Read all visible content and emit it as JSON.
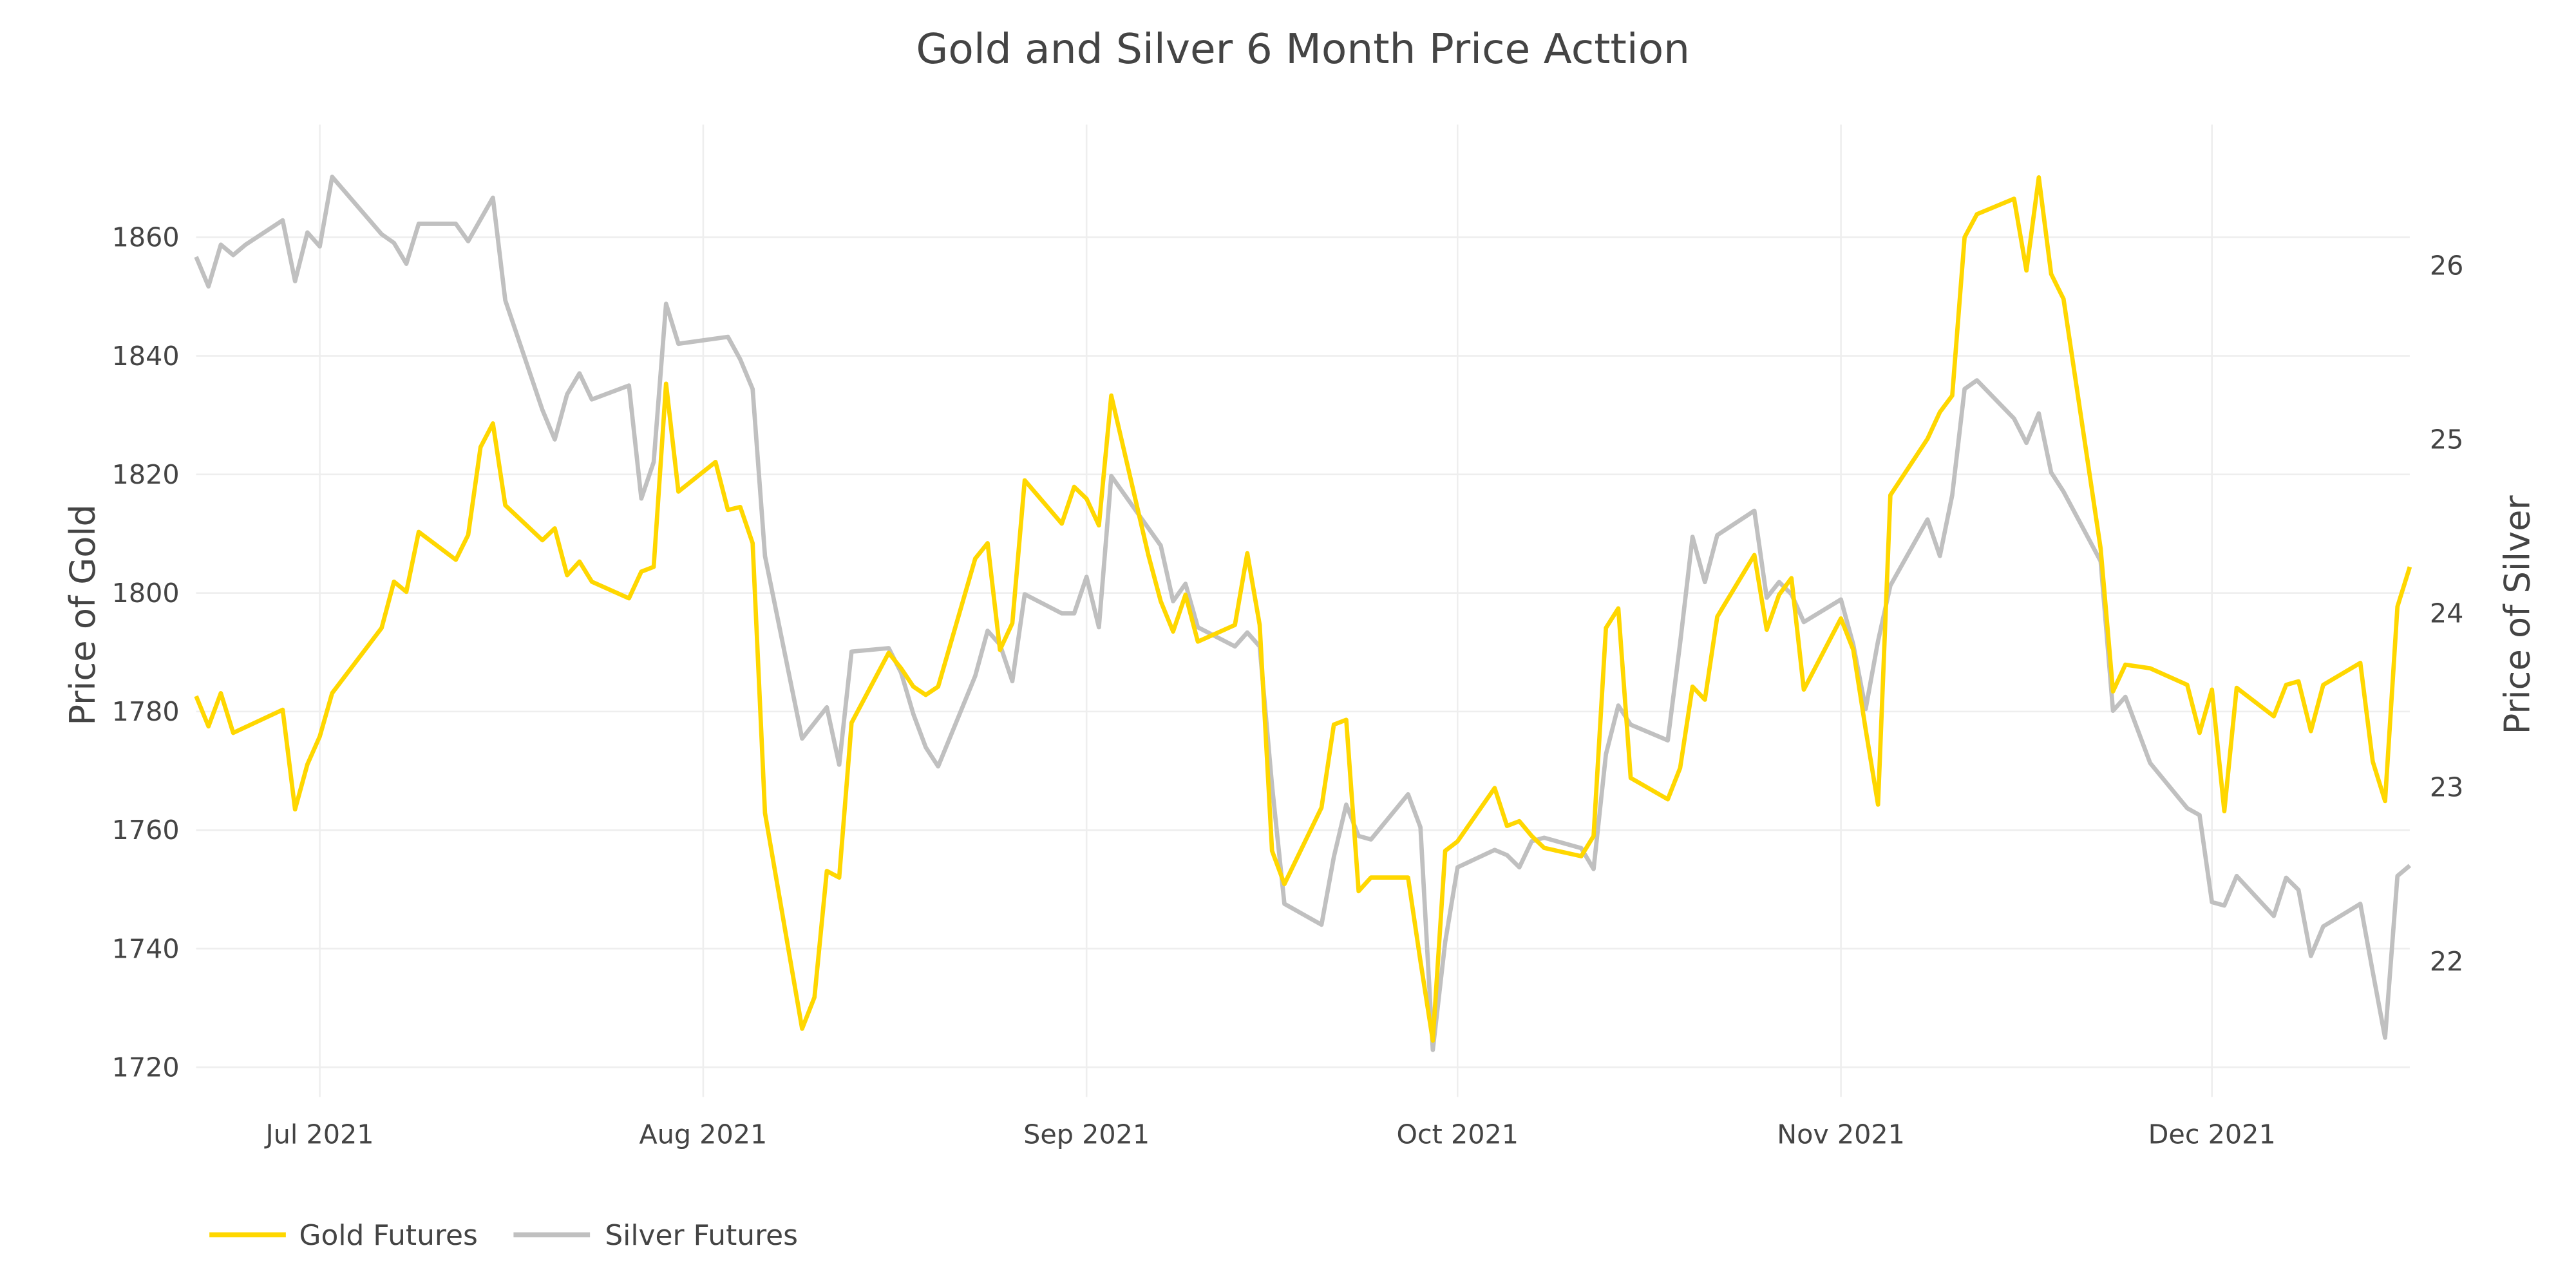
{
  "chart_data": {
    "type": "line",
    "title": "Gold and Silver 6 Month Price Acttion",
    "xlabel": "",
    "ylabel": "Price of Gold",
    "y2label": "Price of Silver",
    "xlim": [
      "2021-06-21",
      "2021-12-17"
    ],
    "ylim": [
      1715,
      1879
    ],
    "y2lim": [
      21.22,
      26.81
    ],
    "x_ticks": [
      {
        "date": "2021-07-01",
        "label": "Jul 2021"
      },
      {
        "date": "2021-08-01",
        "label": "Aug 2021"
      },
      {
        "date": "2021-09-01",
        "label": "Sep 2021"
      },
      {
        "date": "2021-10-01",
        "label": "Oct 2021"
      },
      {
        "date": "2021-11-01",
        "label": "Nov 2021"
      },
      {
        "date": "2021-12-01",
        "label": "Dec 2021"
      }
    ],
    "y_ticks": [
      1720,
      1740,
      1760,
      1780,
      1800,
      1820,
      1840,
      1860
    ],
    "y2_ticks": [
      22,
      23,
      24,
      25,
      26
    ],
    "grid": true,
    "legend": {
      "position": "bottom-left",
      "orientation": "horizontal"
    },
    "series": [
      {
        "name": "Gold Futures",
        "axis": "y",
        "color": "#FFD700",
        "points": [
          [
            "2021-06-21",
            1782.6
          ],
          [
            "2021-06-22",
            1777.5
          ],
          [
            "2021-06-23",
            1783.1
          ],
          [
            "2021-06-24",
            1776.4
          ],
          [
            "2021-06-28",
            1780.3
          ],
          [
            "2021-06-29",
            1763.5
          ],
          [
            "2021-06-30",
            1771.1
          ],
          [
            "2021-07-01",
            1775.8
          ],
          [
            "2021-07-02",
            1783.1
          ],
          [
            "2021-07-06",
            1794.1
          ],
          [
            "2021-07-07",
            1801.9
          ],
          [
            "2021-07-08",
            1800.2
          ],
          [
            "2021-07-09",
            1810.3
          ],
          [
            "2021-07-12",
            1805.6
          ],
          [
            "2021-07-13",
            1809.8
          ],
          [
            "2021-07-14",
            1824.6
          ],
          [
            "2021-07-15",
            1828.6
          ],
          [
            "2021-07-16",
            1814.8
          ],
          [
            "2021-07-19",
            1808.9
          ],
          [
            "2021-07-20",
            1810.9
          ],
          [
            "2021-07-21",
            1803.0
          ],
          [
            "2021-07-22",
            1805.3
          ],
          [
            "2021-07-23",
            1801.9
          ],
          [
            "2021-07-26",
            1799.1
          ],
          [
            "2021-07-27",
            1803.6
          ],
          [
            "2021-07-28",
            1804.4
          ],
          [
            "2021-07-29",
            1835.3
          ],
          [
            "2021-07-30",
            1817.1
          ],
          [
            "2021-08-02",
            1822.1
          ],
          [
            "2021-08-03",
            1814.0
          ],
          [
            "2021-08-04",
            1814.5
          ],
          [
            "2021-08-05",
            1808.4
          ],
          [
            "2021-08-06",
            1762.9
          ],
          [
            "2021-08-09",
            1726.5
          ],
          [
            "2021-08-10",
            1731.8
          ],
          [
            "2021-08-11",
            1753.1
          ],
          [
            "2021-08-12",
            1752.0
          ],
          [
            "2021-08-13",
            1778.1
          ],
          [
            "2021-08-16",
            1789.9
          ],
          [
            "2021-08-17",
            1787.3
          ],
          [
            "2021-08-18",
            1784.2
          ],
          [
            "2021-08-19",
            1782.8
          ],
          [
            "2021-08-20",
            1784.2
          ],
          [
            "2021-08-23",
            1805.8
          ],
          [
            "2021-08-24",
            1808.4
          ],
          [
            "2021-08-25",
            1790.4
          ],
          [
            "2021-08-26",
            1794.9
          ],
          [
            "2021-08-27",
            1819.0
          ],
          [
            "2021-08-30",
            1811.7
          ],
          [
            "2021-08-31",
            1817.9
          ],
          [
            "2021-09-01",
            1815.9
          ],
          [
            "2021-09-02",
            1811.4
          ],
          [
            "2021-09-03",
            1833.3
          ],
          [
            "2021-09-06",
            1806.4
          ],
          [
            "2021-09-07",
            1798.6
          ],
          [
            "2021-09-08",
            1793.5
          ],
          [
            "2021-09-09",
            1799.7
          ],
          [
            "2021-09-10",
            1791.8
          ],
          [
            "2021-09-13",
            1794.6
          ],
          [
            "2021-09-14",
            1806.7
          ],
          [
            "2021-09-15",
            1794.6
          ],
          [
            "2021-09-16",
            1756.5
          ],
          [
            "2021-09-17",
            1750.9
          ],
          [
            "2021-09-20",
            1763.8
          ],
          [
            "2021-09-21",
            1777.8
          ],
          [
            "2021-09-22",
            1778.6
          ],
          [
            "2021-09-23",
            1749.7
          ],
          [
            "2021-09-24",
            1752.0
          ],
          [
            "2021-09-27",
            1752.0
          ],
          [
            "2021-09-28",
            1737.9
          ],
          [
            "2021-09-29",
            1724.5
          ],
          [
            "2021-09-30",
            1756.5
          ],
          [
            "2021-10-01",
            1758.1
          ],
          [
            "2021-10-04",
            1767.1
          ],
          [
            "2021-10-05",
            1760.7
          ],
          [
            "2021-10-06",
            1761.5
          ],
          [
            "2021-10-07",
            1759.0
          ],
          [
            "2021-10-08",
            1757.0
          ],
          [
            "2021-10-11",
            1755.6
          ],
          [
            "2021-10-12",
            1759.0
          ],
          [
            "2021-10-13",
            1794.1
          ],
          [
            "2021-10-14",
            1797.4
          ],
          [
            "2021-10-15",
            1768.8
          ],
          [
            "2021-10-18",
            1765.2
          ],
          [
            "2021-10-19",
            1770.5
          ],
          [
            "2021-10-20",
            1784.2
          ],
          [
            "2021-10-21",
            1782.0
          ],
          [
            "2021-10-22",
            1796.0
          ],
          [
            "2021-10-25",
            1806.4
          ],
          [
            "2021-10-26",
            1793.8
          ],
          [
            "2021-10-27",
            1799.7
          ],
          [
            "2021-10-28",
            1802.5
          ],
          [
            "2021-10-29",
            1783.7
          ],
          [
            "2021-11-01",
            1795.7
          ],
          [
            "2021-11-02",
            1790.4
          ],
          [
            "2021-11-03",
            1777.0
          ],
          [
            "2021-11-04",
            1764.3
          ],
          [
            "2021-11-05",
            1816.5
          ],
          [
            "2021-11-08",
            1826.0
          ],
          [
            "2021-11-09",
            1830.5
          ],
          [
            "2021-11-10",
            1833.3
          ],
          [
            "2021-11-11",
            1860.0
          ],
          [
            "2021-11-12",
            1863.9
          ],
          [
            "2021-11-15",
            1866.5
          ],
          [
            "2021-11-16",
            1854.4
          ],
          [
            "2021-11-17",
            1870.1
          ],
          [
            "2021-11-18",
            1853.8
          ],
          [
            "2021-11-19",
            1849.6
          ],
          [
            "2021-11-22",
            1807.5
          ],
          [
            "2021-11-23",
            1783.4
          ],
          [
            "2021-11-24",
            1787.9
          ],
          [
            "2021-11-26",
            1787.3
          ],
          [
            "2021-11-29",
            1784.5
          ],
          [
            "2021-11-30",
            1776.4
          ],
          [
            "2021-12-01",
            1783.7
          ],
          [
            "2021-12-02",
            1763.2
          ],
          [
            "2021-12-03",
            1784.0
          ],
          [
            "2021-12-06",
            1779.2
          ],
          [
            "2021-12-07",
            1784.5
          ],
          [
            "2021-12-08",
            1785.1
          ],
          [
            "2021-12-09",
            1776.7
          ],
          [
            "2021-12-10",
            1784.5
          ],
          [
            "2021-12-13",
            1788.2
          ],
          [
            "2021-12-14",
            1771.6
          ],
          [
            "2021-12-15",
            1764.9
          ],
          [
            "2021-12-16",
            1797.7
          ],
          [
            "2021-12-17",
            1804.4
          ]
        ]
      },
      {
        "name": "Silver Futures",
        "axis": "y2",
        "color": "#C0C0C0",
        "points": [
          [
            "2021-06-21",
            26.05
          ],
          [
            "2021-06-22",
            25.88
          ],
          [
            "2021-06-23",
            26.12
          ],
          [
            "2021-06-24",
            26.06
          ],
          [
            "2021-06-25",
            26.12
          ],
          [
            "2021-06-28",
            26.26
          ],
          [
            "2021-06-29",
            25.91
          ],
          [
            "2021-06-30",
            26.19
          ],
          [
            "2021-07-01",
            26.11
          ],
          [
            "2021-07-02",
            26.51
          ],
          [
            "2021-07-06",
            26.18
          ],
          [
            "2021-07-07",
            26.13
          ],
          [
            "2021-07-08",
            26.01
          ],
          [
            "2021-07-09",
            26.24
          ],
          [
            "2021-07-12",
            26.24
          ],
          [
            "2021-07-13",
            26.14
          ],
          [
            "2021-07-15",
            26.39
          ],
          [
            "2021-07-16",
            25.8
          ],
          [
            "2021-07-19",
            25.17
          ],
          [
            "2021-07-20",
            25.0
          ],
          [
            "2021-07-21",
            25.26
          ],
          [
            "2021-07-22",
            25.38
          ],
          [
            "2021-07-23",
            25.23
          ],
          [
            "2021-07-26",
            25.31
          ],
          [
            "2021-07-27",
            24.66
          ],
          [
            "2021-07-28",
            24.87
          ],
          [
            "2021-07-29",
            25.78
          ],
          [
            "2021-07-30",
            25.55
          ],
          [
            "2021-08-03",
            25.59
          ],
          [
            "2021-08-04",
            25.46
          ],
          [
            "2021-08-05",
            25.29
          ],
          [
            "2021-08-06",
            24.33
          ],
          [
            "2021-08-09",
            23.28
          ],
          [
            "2021-08-11",
            23.46
          ],
          [
            "2021-08-12",
            23.13
          ],
          [
            "2021-08-13",
            23.78
          ],
          [
            "2021-08-16",
            23.8
          ],
          [
            "2021-08-17",
            23.66
          ],
          [
            "2021-08-18",
            23.42
          ],
          [
            "2021-08-19",
            23.23
          ],
          [
            "2021-08-20",
            23.12
          ],
          [
            "2021-08-23",
            23.64
          ],
          [
            "2021-08-24",
            23.9
          ],
          [
            "2021-08-25",
            23.82
          ],
          [
            "2021-08-26",
            23.61
          ],
          [
            "2021-08-27",
            24.11
          ],
          [
            "2021-08-30",
            24.0
          ],
          [
            "2021-08-31",
            24.0
          ],
          [
            "2021-09-01",
            24.21
          ],
          [
            "2021-09-02",
            23.92
          ],
          [
            "2021-09-03",
            24.79
          ],
          [
            "2021-09-07",
            24.39
          ],
          [
            "2021-09-08",
            24.07
          ],
          [
            "2021-09-09",
            24.17
          ],
          [
            "2021-09-10",
            23.92
          ],
          [
            "2021-09-13",
            23.81
          ],
          [
            "2021-09-14",
            23.89
          ],
          [
            "2021-09-15",
            23.81
          ],
          [
            "2021-09-16",
            23.01
          ],
          [
            "2021-09-17",
            22.33
          ],
          [
            "2021-09-20",
            22.21
          ],
          [
            "2021-09-21",
            22.6
          ],
          [
            "2021-09-22",
            22.9
          ],
          [
            "2021-09-23",
            22.72
          ],
          [
            "2021-09-24",
            22.7
          ],
          [
            "2021-09-27",
            22.96
          ],
          [
            "2021-09-28",
            22.77
          ],
          [
            "2021-09-29",
            21.49
          ],
          [
            "2021-09-30",
            22.11
          ],
          [
            "2021-10-01",
            22.54
          ],
          [
            "2021-10-04",
            22.64
          ],
          [
            "2021-10-05",
            22.61
          ],
          [
            "2021-10-06",
            22.54
          ],
          [
            "2021-10-07",
            22.69
          ],
          [
            "2021-10-08",
            22.71
          ],
          [
            "2021-10-11",
            22.65
          ],
          [
            "2021-10-12",
            22.53
          ],
          [
            "2021-10-13",
            23.19
          ],
          [
            "2021-10-14",
            23.47
          ],
          [
            "2021-10-15",
            23.36
          ],
          [
            "2021-10-18",
            23.27
          ],
          [
            "2021-10-19",
            23.83
          ],
          [
            "2021-10-20",
            24.44
          ],
          [
            "2021-10-21",
            24.18
          ],
          [
            "2021-10-22",
            24.45
          ],
          [
            "2021-10-25",
            24.59
          ],
          [
            "2021-10-26",
            24.09
          ],
          [
            "2021-10-27",
            24.18
          ],
          [
            "2021-10-28",
            24.11
          ],
          [
            "2021-10-29",
            23.95
          ],
          [
            "2021-11-01",
            24.08
          ],
          [
            "2021-11-02",
            23.82
          ],
          [
            "2021-11-03",
            23.45
          ],
          [
            "2021-11-04",
            23.84
          ],
          [
            "2021-11-05",
            24.16
          ],
          [
            "2021-11-08",
            24.54
          ],
          [
            "2021-11-09",
            24.33
          ],
          [
            "2021-11-10",
            24.68
          ],
          [
            "2021-11-11",
            25.29
          ],
          [
            "2021-11-12",
            25.34
          ],
          [
            "2021-11-15",
            25.12
          ],
          [
            "2021-11-16",
            24.98
          ],
          [
            "2021-11-17",
            25.15
          ],
          [
            "2021-11-18",
            24.81
          ],
          [
            "2021-11-19",
            24.7
          ],
          [
            "2021-11-22",
            24.3
          ],
          [
            "2021-11-23",
            23.44
          ],
          [
            "2021-11-24",
            23.52
          ],
          [
            "2021-11-26",
            23.14
          ],
          [
            "2021-11-29",
            22.88
          ],
          [
            "2021-11-30",
            22.84
          ],
          [
            "2021-12-01",
            22.34
          ],
          [
            "2021-12-02",
            22.32
          ],
          [
            "2021-12-03",
            22.49
          ],
          [
            "2021-12-06",
            22.26
          ],
          [
            "2021-12-07",
            22.48
          ],
          [
            "2021-12-08",
            22.41
          ],
          [
            "2021-12-09",
            22.03
          ],
          [
            "2021-12-10",
            22.2
          ],
          [
            "2021-12-13",
            22.33
          ],
          [
            "2021-12-14",
            21.94
          ],
          [
            "2021-12-15",
            21.56
          ],
          [
            "2021-12-16",
            22.49
          ],
          [
            "2021-12-17",
            22.55
          ]
        ]
      }
    ]
  }
}
